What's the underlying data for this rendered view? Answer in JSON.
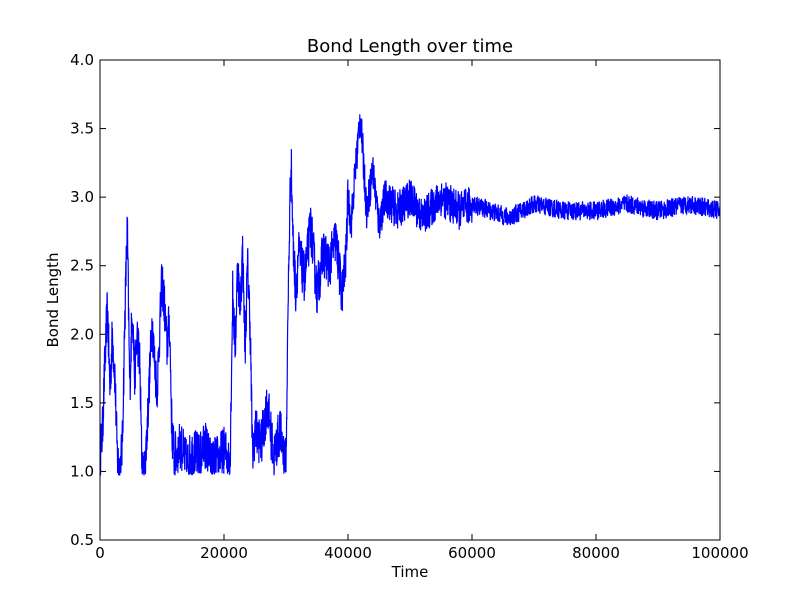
{
  "chart_data": {
    "type": "line",
    "title": "Bond Length over time",
    "xlabel": "Time",
    "ylabel": "Bond Length",
    "xlim": [
      0,
      100000
    ],
    "ylim": [
      0.5,
      4.0
    ],
    "grid": false,
    "line_color": "#0000ff",
    "x_ticks": [
      0,
      20000,
      40000,
      60000,
      80000,
      100000
    ],
    "x_tick_labels": [
      "0",
      "20000",
      "40000",
      "60000",
      "80000",
      "100000"
    ],
    "y_ticks": [
      0.5,
      1.0,
      1.5,
      2.0,
      2.5,
      3.0,
      3.5,
      4.0
    ],
    "y_tick_labels": [
      "0.5",
      "1.0",
      "1.5",
      "2.0",
      "2.5",
      "3.0",
      "3.5",
      "4.0"
    ],
    "series": [
      {
        "x": [
          0,
          400,
          800,
          1200,
          1600,
          2000,
          2400,
          2800,
          3200,
          3600,
          4000,
          4400,
          4800,
          5200,
          5600,
          6000,
          6400,
          6800,
          7200,
          7600,
          8000,
          8400,
          8800,
          9200,
          9600,
          10000,
          10400,
          10800,
          11200,
          11600,
          12000,
          13000,
          14000,
          15000,
          16000,
          17000,
          18000,
          19000,
          20000,
          21000,
          21400,
          21800,
          22200,
          22600,
          23000,
          23400,
          23800,
          24200,
          24600,
          25000,
          26000,
          27000,
          28000,
          29000,
          30000,
          30400,
          30800,
          31200,
          31600,
          32000,
          33000,
          34000,
          35000,
          36000,
          37000,
          38000,
          39000,
          39600,
          40000,
          40500,
          41000,
          42000,
          43000,
          44000,
          45000,
          46000,
          48000,
          50000,
          52000,
          55000,
          58000,
          60000,
          63000,
          66000,
          70000,
          75000,
          80000,
          85000,
          90000,
          95000,
          100000
        ],
        "y": [
          1.1,
          1.3,
          1.8,
          2.2,
          1.6,
          2.0,
          1.7,
          1.1,
          1.0,
          1.2,
          2.1,
          2.8,
          1.6,
          2.2,
          1.7,
          2.0,
          1.8,
          1.0,
          1.0,
          1.3,
          1.7,
          2.1,
          1.8,
          1.6,
          2.0,
          2.4,
          2.2,
          1.9,
          2.1,
          1.3,
          1.1,
          1.2,
          1.05,
          1.15,
          1.1,
          1.2,
          1.05,
          1.1,
          1.15,
          1.1,
          2.3,
          1.9,
          2.5,
          2.2,
          2.6,
          1.9,
          2.5,
          2.1,
          1.1,
          1.3,
          1.2,
          1.5,
          1.1,
          1.3,
          1.05,
          2.4,
          3.3,
          2.6,
          2.3,
          2.6,
          2.4,
          2.8,
          2.3,
          2.6,
          2.5,
          2.7,
          2.3,
          2.5,
          3.0,
          2.8,
          3.1,
          3.6,
          2.9,
          3.2,
          2.8,
          3.0,
          2.9,
          3.0,
          2.85,
          3.0,
          2.9,
          2.95,
          2.9,
          2.85,
          2.95,
          2.9,
          2.9,
          2.95,
          2.9,
          2.95,
          2.9
        ]
      }
    ]
  }
}
